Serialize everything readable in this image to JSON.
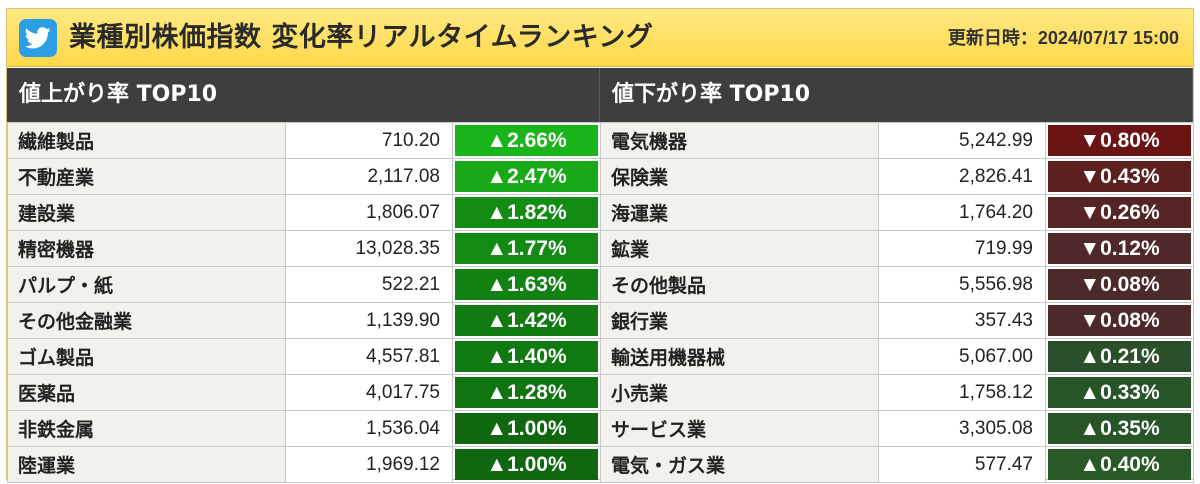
{
  "header": {
    "title": "業種別株価指数 変化率リアルタイムランキング",
    "updated": "更新日時：2024/07/17 15:00",
    "icon": "twitter-bird-icon",
    "bg_color": "#ffde5a"
  },
  "gainers": {
    "title": "値上がり率 TOP10",
    "rows": [
      {
        "name": "繊維製品",
        "value": "710.20",
        "change": "▲2.66%",
        "color": "#19b51a"
      },
      {
        "name": "不動産業",
        "value": "2,117.08",
        "change": "▲2.47%",
        "color": "#18a818"
      },
      {
        "name": "建設業",
        "value": "1,806.07",
        "change": "▲1.82%",
        "color": "#138c13"
      },
      {
        "name": "精密機器",
        "value": "13,028.35",
        "change": "▲1.77%",
        "color": "#138a13"
      },
      {
        "name": "パルプ・紙",
        "value": "522.21",
        "change": "▲1.63%",
        "color": "#128312"
      },
      {
        "name": "その他金融業",
        "value": "1,139.90",
        "change": "▲1.42%",
        "color": "#117a11"
      },
      {
        "name": "ゴム製品",
        "value": "4,557.81",
        "change": "▲1.40%",
        "color": "#117911"
      },
      {
        "name": "医薬品",
        "value": "4,017.75",
        "change": "▲1.28%",
        "color": "#107410"
      },
      {
        "name": "非鉄金属",
        "value": "1,536.04",
        "change": "▲1.00%",
        "color": "#0f680f"
      },
      {
        "name": "陸運業",
        "value": "1,969.12",
        "change": "▲1.00%",
        "color": "#0f680f"
      }
    ]
  },
  "losers": {
    "title": "値下がり率 TOP10",
    "rows": [
      {
        "name": "電気機器",
        "value": "5,242.99",
        "change": "▼0.80%",
        "color": "#6b1414"
      },
      {
        "name": "保険業",
        "value": "2,826.41",
        "change": "▼0.43%",
        "color": "#5c2020"
      },
      {
        "name": "海運業",
        "value": "1,764.20",
        "change": "▼0.26%",
        "color": "#552525"
      },
      {
        "name": "鉱業",
        "value": "719.99",
        "change": "▼0.12%",
        "color": "#4f2929"
      },
      {
        "name": "その他製品",
        "value": "5,556.98",
        "change": "▼0.08%",
        "color": "#4d2a2a"
      },
      {
        "name": "銀行業",
        "value": "357.43",
        "change": "▼0.08%",
        "color": "#4d2a2a"
      },
      {
        "name": "輸送用機器械",
        "value": "5,067.00",
        "change": "▲0.21%",
        "color": "#2a4f2a"
      },
      {
        "name": "小売業",
        "value": "1,758.12",
        "change": "▲0.33%",
        "color": "#285528"
      },
      {
        "name": "サービス業",
        "value": "3,305.08",
        "change": "▲0.35%",
        "color": "#285528"
      },
      {
        "name": "電気・ガス業",
        "value": "577.47",
        "change": "▲0.40%",
        "color": "#275a27"
      }
    ]
  }
}
